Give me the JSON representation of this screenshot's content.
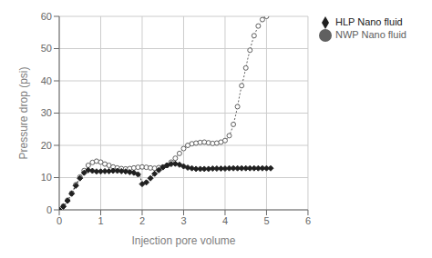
{
  "chart_data": {
    "type": "line",
    "xlabel": "Injection pore volume",
    "ylabel": "Pressure drop (psi)",
    "xlim": [
      0,
      6
    ],
    "ylim": [
      0,
      60
    ],
    "xticks": [
      0,
      1,
      2,
      3,
      4,
      5,
      6
    ],
    "yticks": [
      0,
      10,
      20,
      30,
      40,
      50,
      60
    ],
    "grid": true,
    "legend": "right",
    "series": [
      {
        "name": "NWP Nano fluid",
        "color": "#606060",
        "marker": "circle",
        "line_style": "dotted",
        "x": [
          0.0,
          0.05,
          0.1,
          0.15,
          0.2,
          0.25,
          0.3,
          0.35,
          0.4,
          0.45,
          0.5,
          0.55,
          0.6,
          0.65,
          0.7,
          0.75,
          0.8,
          0.85,
          0.9,
          0.95,
          1.0,
          1.05,
          1.1,
          1.15,
          1.2,
          1.25,
          1.3,
          1.35,
          1.4,
          1.45,
          1.5,
          1.55,
          1.6,
          1.65,
          1.7,
          1.75,
          1.8,
          1.85,
          1.9,
          1.95,
          2.0,
          2.05,
          2.1,
          2.15,
          2.2,
          2.25,
          2.3,
          2.35,
          2.4,
          2.45,
          2.5,
          2.55,
          2.6,
          2.65,
          2.7,
          2.75,
          2.8,
          2.85,
          2.9,
          2.95,
          3.0,
          3.05,
          3.1,
          3.15,
          3.2,
          3.25,
          3.3,
          3.35,
          3.4,
          3.45,
          3.5,
          3.55,
          3.6,
          3.65,
          3.7,
          3.75,
          3.8,
          3.85,
          3.9,
          3.95,
          4.0,
          4.05,
          4.1,
          4.15,
          4.2,
          4.25,
          4.3,
          4.35,
          4.4,
          4.45,
          4.5,
          4.55,
          4.6,
          4.65,
          4.7,
          4.75,
          4.8,
          4.85,
          4.9,
          4.95,
          5.0
        ],
        "values": [
          0.0,
          0.5,
          1.2,
          2.0,
          3.0,
          4.0,
          5.2,
          6.5,
          7.8,
          9.0,
          10.2,
          11.3,
          12.2,
          13.0,
          13.8,
          14.3,
          14.7,
          15.0,
          15.1,
          15.0,
          14.8,
          14.5,
          14.2,
          14.0,
          13.8,
          13.5,
          13.3,
          13.2,
          13.0,
          12.9,
          12.8,
          12.7,
          12.7,
          12.7,
          12.8,
          12.9,
          13.0,
          13.1,
          13.2,
          13.2,
          13.3,
          13.3,
          13.2,
          13.1,
          13.0,
          12.9,
          12.9,
          13.0,
          13.1,
          13.2,
          13.3,
          13.5,
          13.8,
          14.2,
          14.8,
          15.3,
          16.0,
          16.8,
          17.5,
          18.2,
          19.0,
          19.5,
          20.0,
          20.3,
          20.5,
          20.6,
          20.7,
          20.8,
          20.9,
          21.0,
          21.0,
          20.9,
          20.8,
          20.7,
          20.6,
          20.6,
          20.7,
          20.8,
          21.0,
          21.2,
          21.5,
          22.0,
          23.0,
          24.5,
          26.5,
          29.0,
          32.0,
          35.5,
          38.5,
          41.0,
          44.0,
          47.0,
          49.5,
          52.0,
          54.0,
          55.5,
          57.0,
          58.0,
          59.0,
          59.5,
          60.0
        ]
      },
      {
        "name": "HLP Nano fluid",
        "color": "#202020",
        "marker": "diamond",
        "line_style": "dotted",
        "x": [
          0.0,
          0.05,
          0.1,
          0.15,
          0.2,
          0.25,
          0.3,
          0.35,
          0.4,
          0.45,
          0.5,
          0.55,
          0.6,
          0.65,
          0.7,
          0.75,
          0.8,
          0.85,
          0.9,
          0.95,
          1.0,
          1.05,
          1.1,
          1.15,
          1.2,
          1.25,
          1.3,
          1.35,
          1.4,
          1.45,
          1.5,
          1.55,
          1.6,
          1.65,
          1.7,
          1.75,
          1.8,
          1.85,
          1.9,
          1.95,
          2.0,
          2.05,
          2.1,
          2.15,
          2.2,
          2.25,
          2.3,
          2.35,
          2.4,
          2.45,
          2.5,
          2.55,
          2.6,
          2.65,
          2.7,
          2.75,
          2.8,
          2.85,
          2.9,
          2.95,
          3.0,
          3.05,
          3.1,
          3.15,
          3.2,
          3.25,
          3.3,
          3.35,
          3.4,
          3.45,
          3.5,
          3.55,
          3.6,
          3.65,
          3.7,
          3.75,
          3.8,
          3.85,
          3.9,
          3.95,
          4.0,
          4.05,
          4.1,
          4.15,
          4.2,
          4.25,
          4.3,
          4.35,
          4.4,
          4.45,
          4.5,
          4.55,
          4.6,
          4.65,
          4.7,
          4.75,
          4.8,
          4.85,
          4.9,
          4.95,
          5.0,
          5.05,
          5.1
        ],
        "values": [
          0.0,
          0.4,
          1.0,
          1.8,
          2.8,
          3.8,
          5.0,
          6.2,
          7.5,
          8.7,
          9.8,
          10.8,
          11.5,
          12.0,
          12.3,
          12.2,
          12.1,
          12.0,
          11.9,
          11.9,
          11.9,
          11.9,
          12.0,
          12.0,
          12.0,
          12.1,
          12.1,
          12.1,
          12.1,
          12.0,
          12.0,
          12.0,
          11.9,
          11.8,
          11.7,
          11.6,
          11.5,
          11.3,
          11.0,
          10.5,
          8.0,
          8.2,
          8.5,
          9.0,
          9.8,
          10.5,
          11.2,
          11.8,
          12.3,
          12.8,
          13.2,
          13.5,
          13.8,
          14.0,
          14.2,
          14.3,
          14.3,
          14.2,
          14.0,
          13.8,
          13.5,
          13.3,
          13.1,
          13.0,
          12.9,
          12.8,
          12.7,
          12.7,
          12.7,
          12.7,
          12.7,
          12.7,
          12.7,
          12.7,
          12.8,
          12.8,
          12.8,
          12.8,
          12.8,
          12.8,
          12.8,
          12.9,
          12.9,
          12.9,
          12.9,
          12.9,
          12.9,
          12.9,
          12.9,
          12.9,
          12.9,
          12.9,
          12.9,
          12.9,
          12.9,
          12.9,
          12.9,
          12.9,
          12.9,
          12.9,
          12.9,
          12.9,
          12.9
        ]
      }
    ]
  }
}
